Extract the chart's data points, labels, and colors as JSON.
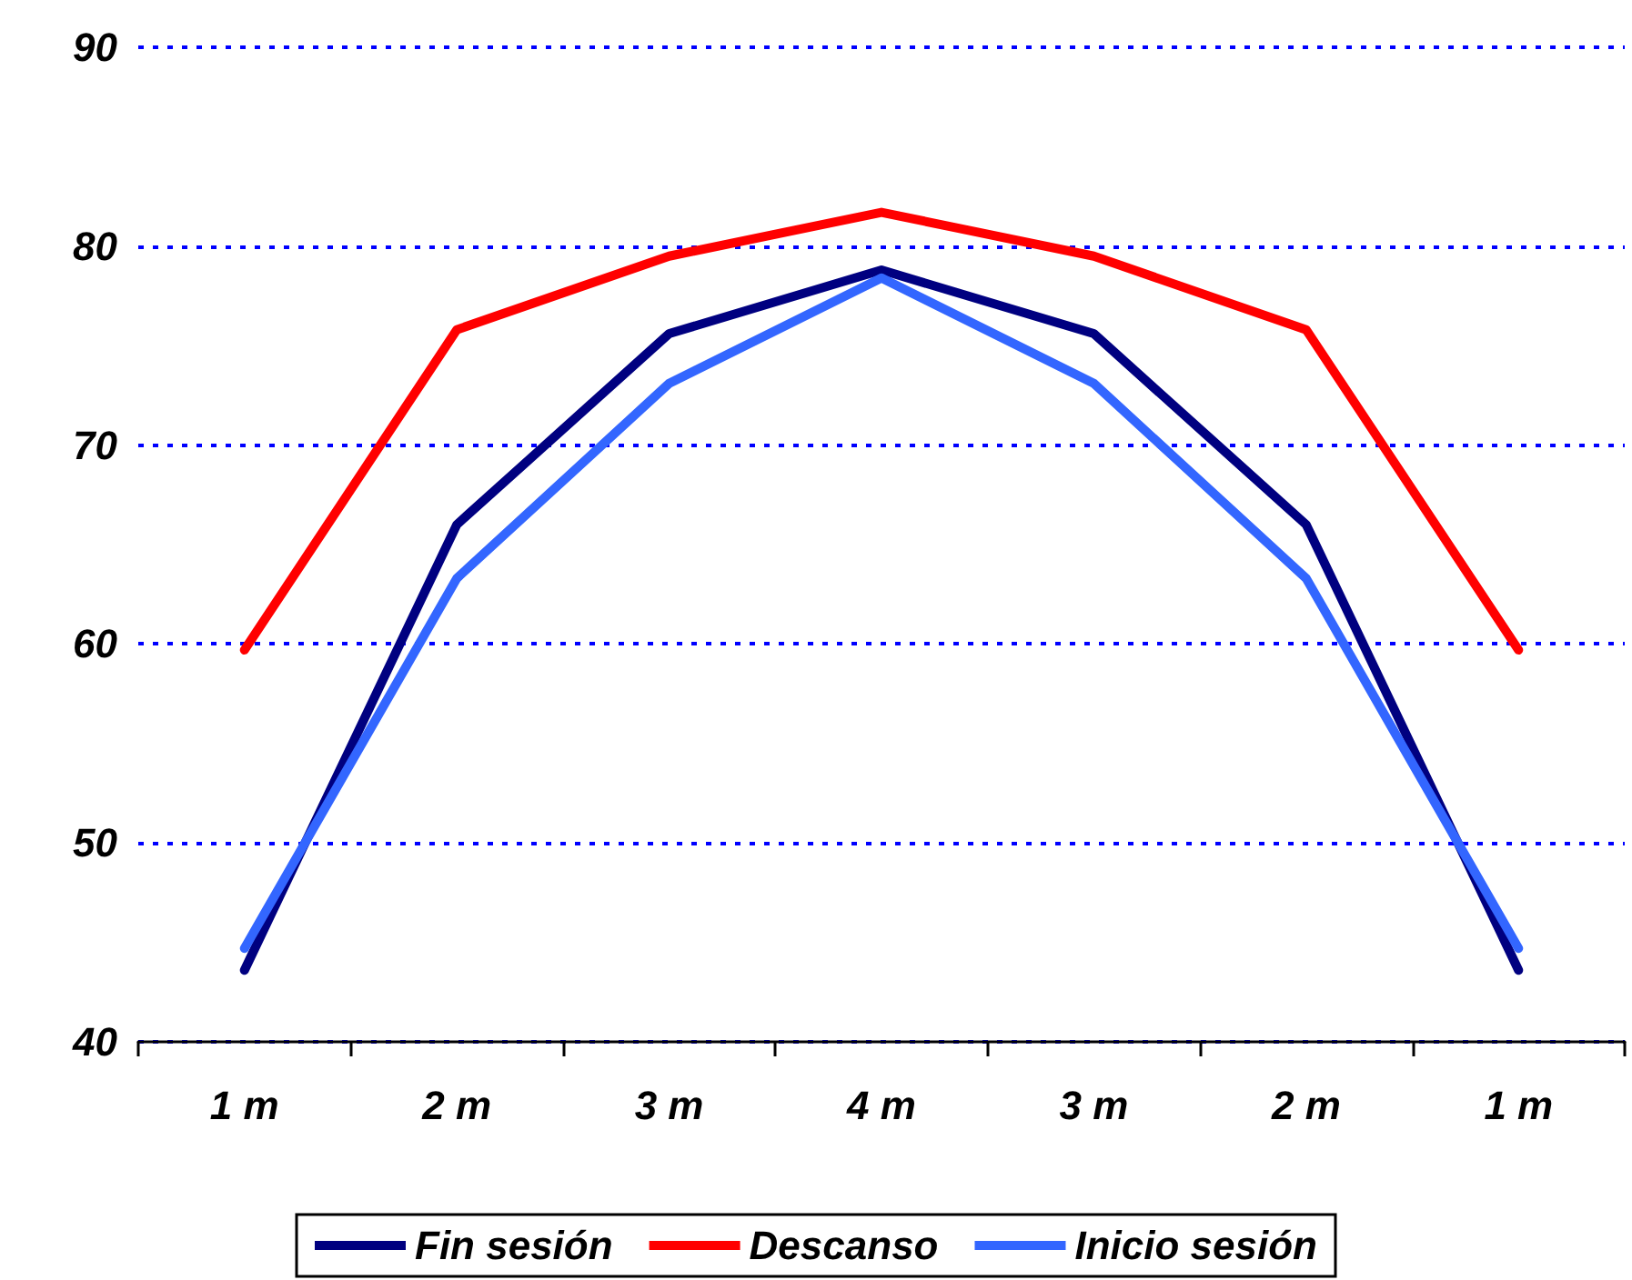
{
  "chart_data": {
    "type": "line",
    "categories": [
      "1 m",
      "2 m",
      "3 m",
      "4 m",
      "3 m",
      "2 m",
      "1 m"
    ],
    "series": [
      {
        "name": "Fin sesión",
        "color": "#000080",
        "values": [
          43.6,
          66.0,
          75.6,
          78.8,
          75.6,
          66.0,
          43.6
        ]
      },
      {
        "name": "Descanso",
        "color": "#ff0000",
        "values": [
          59.7,
          75.8,
          79.5,
          81.7,
          79.5,
          75.8,
          59.7
        ]
      },
      {
        "name": "Inicio sesión",
        "color": "#3366ff",
        "values": [
          44.7,
          63.3,
          73.1,
          78.4,
          73.1,
          63.3,
          44.7
        ]
      }
    ],
    "ylim": [
      40,
      90
    ],
    "yticks": [
      40,
      50,
      60,
      70,
      80,
      90
    ],
    "grid": "y",
    "legend": "bottom",
    "marker": "none",
    "line_style": "solid"
  }
}
